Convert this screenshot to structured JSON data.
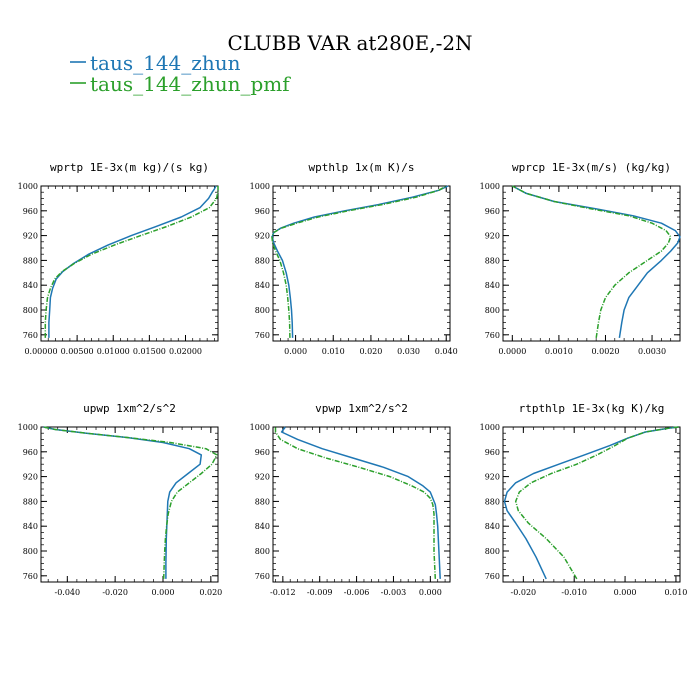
{
  "figure": {
    "title": "CLUBB VAR at280E,-2N",
    "legend": [
      {
        "label": "taus_144_zhun",
        "color": "#1f77b4",
        "dash": "solid"
      },
      {
        "label": "taus_144_zhun_pmf",
        "color": "#2ca02c",
        "dash": "dashed"
      }
    ]
  },
  "chart_data": [
    {
      "type": "line",
      "title": "wprtp  1E-3x(m kg)/(s kg)",
      "xlim": [
        0,
        0.0245
      ],
      "ylim": [
        1000,
        750
      ],
      "xticks": [
        0.0,
        0.005,
        0.01,
        0.015,
        0.02
      ],
      "xtick_labels": [
        "0.00000",
        "0.00500",
        "0.01000",
        "0.01500",
        "0.02000"
      ],
      "yticks": [
        760,
        800,
        840,
        880,
        920,
        960,
        1000
      ],
      "ytick_labels": [
        "760",
        "800",
        "840",
        "880",
        "920",
        "960",
        "1000"
      ],
      "series": [
        {
          "name": "taus_144_zhun",
          "color": "#1f77b4",
          "dash": "solid",
          "x": [
            0.0011,
            0.0011,
            0.0012,
            0.0013,
            0.0016,
            0.0021,
            0.003,
            0.0045,
            0.0066,
            0.0093,
            0.0125,
            0.016,
            0.0194,
            0.022,
            0.0232,
            0.0237,
            0.024,
            0.0242
          ],
          "y": [
            755,
            780,
            800,
            820,
            835,
            850,
            862,
            875,
            890,
            905,
            920,
            935,
            950,
            965,
            980,
            990,
            995,
            1000
          ]
        },
        {
          "name": "taus_144_zhun_pmf",
          "color": "#2ca02c",
          "dash": "dashed",
          "x": [
            0.0006,
            0.0006,
            0.0007,
            0.0009,
            0.0013,
            0.0019,
            0.0029,
            0.0046,
            0.007,
            0.0102,
            0.0138,
            0.0175,
            0.0208,
            0.0233,
            0.0243,
            0.0245,
            0.0245
          ],
          "y": [
            755,
            780,
            800,
            820,
            835,
            850,
            862,
            875,
            890,
            905,
            920,
            935,
            950,
            965,
            980,
            992,
            1000
          ]
        }
      ]
    },
    {
      "type": "line",
      "title": "wpthlp  1x(m K)/s",
      "xlim": [
        -0.006,
        0.041
      ],
      "ylim": [
        1000,
        750
      ],
      "xticks": [
        0.0,
        0.01,
        0.02,
        0.03,
        0.04
      ],
      "xtick_labels": [
        "0.000",
        "0.010",
        "0.020",
        "0.030",
        "0.040"
      ],
      "yticks": [
        760,
        800,
        840,
        880,
        920,
        960,
        1000
      ],
      "ytick_labels": [
        "760",
        "800",
        "840",
        "880",
        "920",
        "960",
        "1000"
      ],
      "series": [
        {
          "name": "taus_144_zhun",
          "color": "#1f77b4",
          "dash": "solid",
          "x": [
            -0.0008,
            -0.0009,
            -0.0011,
            -0.0014,
            -0.0018,
            -0.0025,
            -0.0035,
            -0.0048,
            -0.0058,
            -0.0062,
            -0.0058,
            -0.004,
            -0.0005,
            0.005,
            0.013,
            0.022,
            0.031,
            0.038,
            0.0405
          ],
          "y": [
            755,
            780,
            800,
            820,
            840,
            860,
            880,
            895,
            908,
            918,
            925,
            932,
            940,
            950,
            960,
            970,
            982,
            993,
            1000
          ]
        },
        {
          "name": "taus_144_zhun_pmf",
          "color": "#2ca02c",
          "dash": "dashed",
          "x": [
            -0.0015,
            -0.0016,
            -0.0018,
            -0.0021,
            -0.0025,
            -0.0032,
            -0.0042,
            -0.0053,
            -0.0061,
            -0.0063,
            -0.0058,
            -0.0038,
            0.0003,
            0.006,
            0.014,
            0.023,
            0.032,
            0.038,
            0.04
          ],
          "y": [
            755,
            780,
            800,
            820,
            840,
            860,
            880,
            895,
            908,
            918,
            925,
            932,
            940,
            950,
            960,
            970,
            982,
            993,
            1000
          ]
        }
      ]
    },
    {
      "type": "line",
      "title": "wprcp  1E-3x(m/s) (kg/kg)",
      "xlim": [
        -0.0002,
        0.0036
      ],
      "ylim": [
        1000,
        750
      ],
      "xticks": [
        0.0,
        0.001,
        0.002,
        0.003
      ],
      "xtick_labels": [
        "0.0000",
        "0.0010",
        "0.0020",
        "0.0030"
      ],
      "yticks": [
        760,
        800,
        840,
        880,
        920,
        960,
        1000
      ],
      "ytick_labels": [
        "760",
        "800",
        "840",
        "880",
        "920",
        "960",
        "1000"
      ],
      "series": [
        {
          "name": "taus_144_zhun",
          "color": "#1f77b4",
          "dash": "solid",
          "x": [
            0.0023,
            0.00235,
            0.0024,
            0.0025,
            0.0027,
            0.0029,
            0.0032,
            0.0034,
            0.00355,
            0.0036,
            0.0035,
            0.0032,
            0.0026,
            0.0018,
            0.0009,
            0.0003,
            0.0
          ],
          "y": [
            755,
            780,
            800,
            820,
            840,
            860,
            880,
            895,
            908,
            918,
            928,
            940,
            952,
            963,
            975,
            988,
            1000
          ]
        },
        {
          "name": "taus_144_zhun_pmf",
          "color": "#2ca02c",
          "dash": "dashed",
          "x": [
            0.0018,
            0.00185,
            0.0019,
            0.002,
            0.0022,
            0.0025,
            0.0029,
            0.0032,
            0.00335,
            0.0034,
            0.0033,
            0.003,
            0.0025,
            0.0017,
            0.0009,
            0.0003,
            0.0
          ],
          "y": [
            755,
            780,
            800,
            820,
            840,
            860,
            880,
            895,
            908,
            918,
            928,
            940,
            952,
            963,
            975,
            988,
            1000
          ]
        }
      ]
    },
    {
      "type": "line",
      "title": "upwp  1xm^2/s^2",
      "xlim": [
        -0.051,
        0.023
      ],
      "ylim": [
        1000,
        750
      ],
      "xticks": [
        -0.04,
        -0.02,
        0.0,
        0.02
      ],
      "xtick_labels": [
        "-0.040",
        "-0.020",
        "0.000",
        "0.020"
      ],
      "yticks": [
        760,
        800,
        840,
        880,
        920,
        960,
        1000
      ],
      "ytick_labels": [
        "760",
        "800",
        "840",
        "880",
        "920",
        "960",
        "1000"
      ],
      "series": [
        {
          "name": "taus_144_zhun",
          "color": "#1f77b4",
          "dash": "solid",
          "x": [
            0.0012,
            0.0012,
            0.0013,
            0.0014,
            0.0016,
            0.0018,
            0.002,
            0.0028,
            0.0055,
            0.0105,
            0.0155,
            0.016,
            0.011,
            0.0,
            -0.015,
            -0.032,
            -0.045,
            -0.05
          ],
          "y": [
            755,
            780,
            800,
            820,
            840,
            860,
            880,
            895,
            910,
            925,
            940,
            955,
            965,
            975,
            983,
            990,
            996,
            1000
          ]
        },
        {
          "name": "taus_144_zhun_pmf",
          "color": "#2ca02c",
          "dash": "dashed",
          "x": [
            0.0003,
            0.0005,
            0.0007,
            0.001,
            0.0015,
            0.0022,
            0.0035,
            0.006,
            0.011,
            0.016,
            0.0205,
            0.0225,
            0.018,
            0.003,
            -0.015,
            -0.032,
            -0.045,
            -0.05
          ],
          "y": [
            755,
            780,
            800,
            820,
            840,
            860,
            880,
            895,
            910,
            925,
            940,
            955,
            965,
            975,
            983,
            990,
            996,
            1000
          ]
        }
      ]
    },
    {
      "type": "line",
      "title": "vpwp  1xm^2/s^2",
      "xlim": [
        -0.0128,
        0.0016
      ],
      "ylim": [
        1000,
        750
      ],
      "xticks": [
        -0.012,
        -0.009,
        -0.006,
        -0.003,
        0.0
      ],
      "xtick_labels": [
        "-0.012",
        "-0.009",
        "-0.006",
        "-0.003",
        "0.000"
      ],
      "yticks": [
        760,
        800,
        840,
        880,
        920,
        960,
        1000
      ],
      "ytick_labels": [
        "760",
        "800",
        "840",
        "880",
        "920",
        "960",
        "1000"
      ],
      "series": [
        {
          "name": "taus_144_zhun",
          "color": "#1f77b4",
          "dash": "solid",
          "x": [
            0.0008,
            0.0007,
            0.0006,
            0.0005,
            0.0004,
            0.0002,
            0.0,
            -0.0006,
            -0.0018,
            -0.0038,
            -0.0063,
            -0.0088,
            -0.0108,
            -0.0121,
            -0.0118
          ],
          "y": [
            755,
            800,
            840,
            860,
            875,
            885,
            895,
            905,
            920,
            935,
            950,
            965,
            980,
            992,
            1000
          ]
        },
        {
          "name": "taus_144_zhun_pmf",
          "color": "#2ca02c",
          "dash": "dashed",
          "x": [
            0.0004,
            0.0003,
            0.0003,
            0.0003,
            0.0002,
            0.0,
            -0.0005,
            -0.0015,
            -0.0033,
            -0.0058,
            -0.0085,
            -0.0108,
            -0.0122,
            -0.0126,
            -0.0126
          ],
          "y": [
            755,
            800,
            840,
            860,
            875,
            885,
            895,
            905,
            920,
            935,
            950,
            965,
            980,
            992,
            1000
          ]
        }
      ]
    },
    {
      "type": "line",
      "title": "rtpthlp  1E-3x(kg K)/kg",
      "xlim": [
        -0.024,
        0.0108
      ],
      "ylim": [
        1000,
        750
      ],
      "xticks": [
        -0.02,
        -0.01,
        0.0,
        0.01
      ],
      "xtick_labels": [
        "-0.020",
        "-0.010",
        "0.000",
        "0.010"
      ],
      "yticks": [
        760,
        800,
        840,
        880,
        920,
        960,
        1000
      ],
      "ytick_labels": [
        "760",
        "800",
        "840",
        "880",
        "920",
        "960",
        "1000"
      ],
      "series": [
        {
          "name": "taus_144_zhun",
          "color": "#1f77b4",
          "dash": "solid",
          "x": [
            -0.0155,
            -0.0175,
            -0.0195,
            -0.0215,
            -0.0232,
            -0.0237,
            -0.0232,
            -0.0215,
            -0.018,
            -0.013,
            -0.008,
            -0.003,
            0.0005,
            0.004,
            0.0085,
            0.0105
          ],
          "y": [
            755,
            790,
            820,
            845,
            865,
            880,
            895,
            910,
            925,
            940,
            955,
            970,
            982,
            992,
            998,
            1000
          ]
        },
        {
          "name": "taus_144_zhun_pmf",
          "color": "#2ca02c",
          "dash": "dashed",
          "x": [
            -0.0095,
            -0.012,
            -0.0155,
            -0.019,
            -0.021,
            -0.0215,
            -0.0208,
            -0.0185,
            -0.0145,
            -0.0095,
            -0.0055,
            -0.002,
            0.0005,
            0.004,
            0.0085,
            0.0105
          ],
          "y": [
            755,
            790,
            820,
            845,
            865,
            880,
            895,
            910,
            925,
            940,
            955,
            970,
            982,
            992,
            998,
            1000
          ]
        }
      ]
    }
  ]
}
